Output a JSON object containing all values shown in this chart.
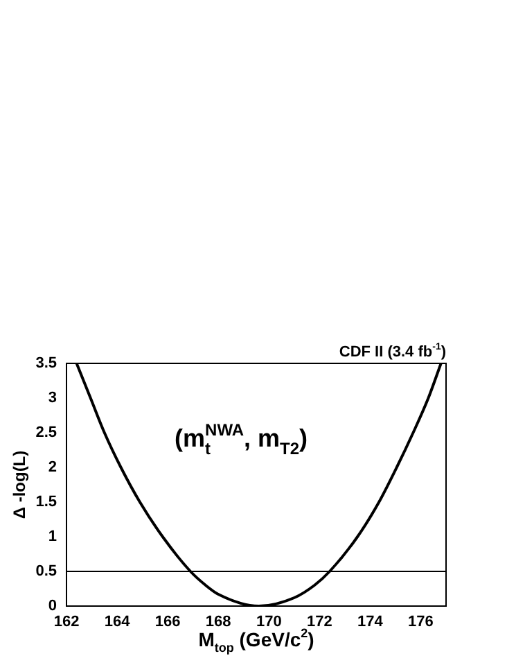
{
  "chart_data": {
    "type": "line",
    "title": "CDF II (3.4 fb$^{-1}$)",
    "xlabel": "M$_{top}$ (GeV/c$^{2}$)",
    "ylabel": "Δ -log(L)",
    "annotations": [
      "(m$_{t}$$^{NWA}$, m$_{T2}$)"
    ],
    "x": [
      162.4,
      162.95,
      163.5,
      164.15,
      164.9,
      165.8,
      166.9,
      167.5,
      168,
      169.6,
      171,
      171.8,
      172.4,
      173.5,
      174.35,
      175.05,
      175.7,
      176.3,
      176.8
    ],
    "series": [
      {
        "color": "#000000",
        "values": [
          3.5,
          3.0,
          2.5,
          2.0,
          1.5,
          1.0,
          0.5,
          0.3,
          0.17,
          0,
          0.12,
          0.3,
          0.5,
          1.0,
          1.5,
          2.0,
          2.5,
          3.0,
          3.5
        ]
      }
    ],
    "xlim": [
      162,
      177
    ],
    "xticks": [
      162,
      164,
      166,
      168,
      170,
      172,
      174,
      176
    ],
    "ylim": [
      0,
      3.5
    ],
    "yticks": [
      0,
      0.5,
      1,
      1.5,
      2,
      2.5,
      3,
      3.5
    ],
    "ref_lines": [
      {
        "axis": "y",
        "value": 0.5,
        "color": "#000000"
      }
    ],
    "grid": false,
    "legend": false,
    "marker": "none",
    "line_style": "solid"
  }
}
